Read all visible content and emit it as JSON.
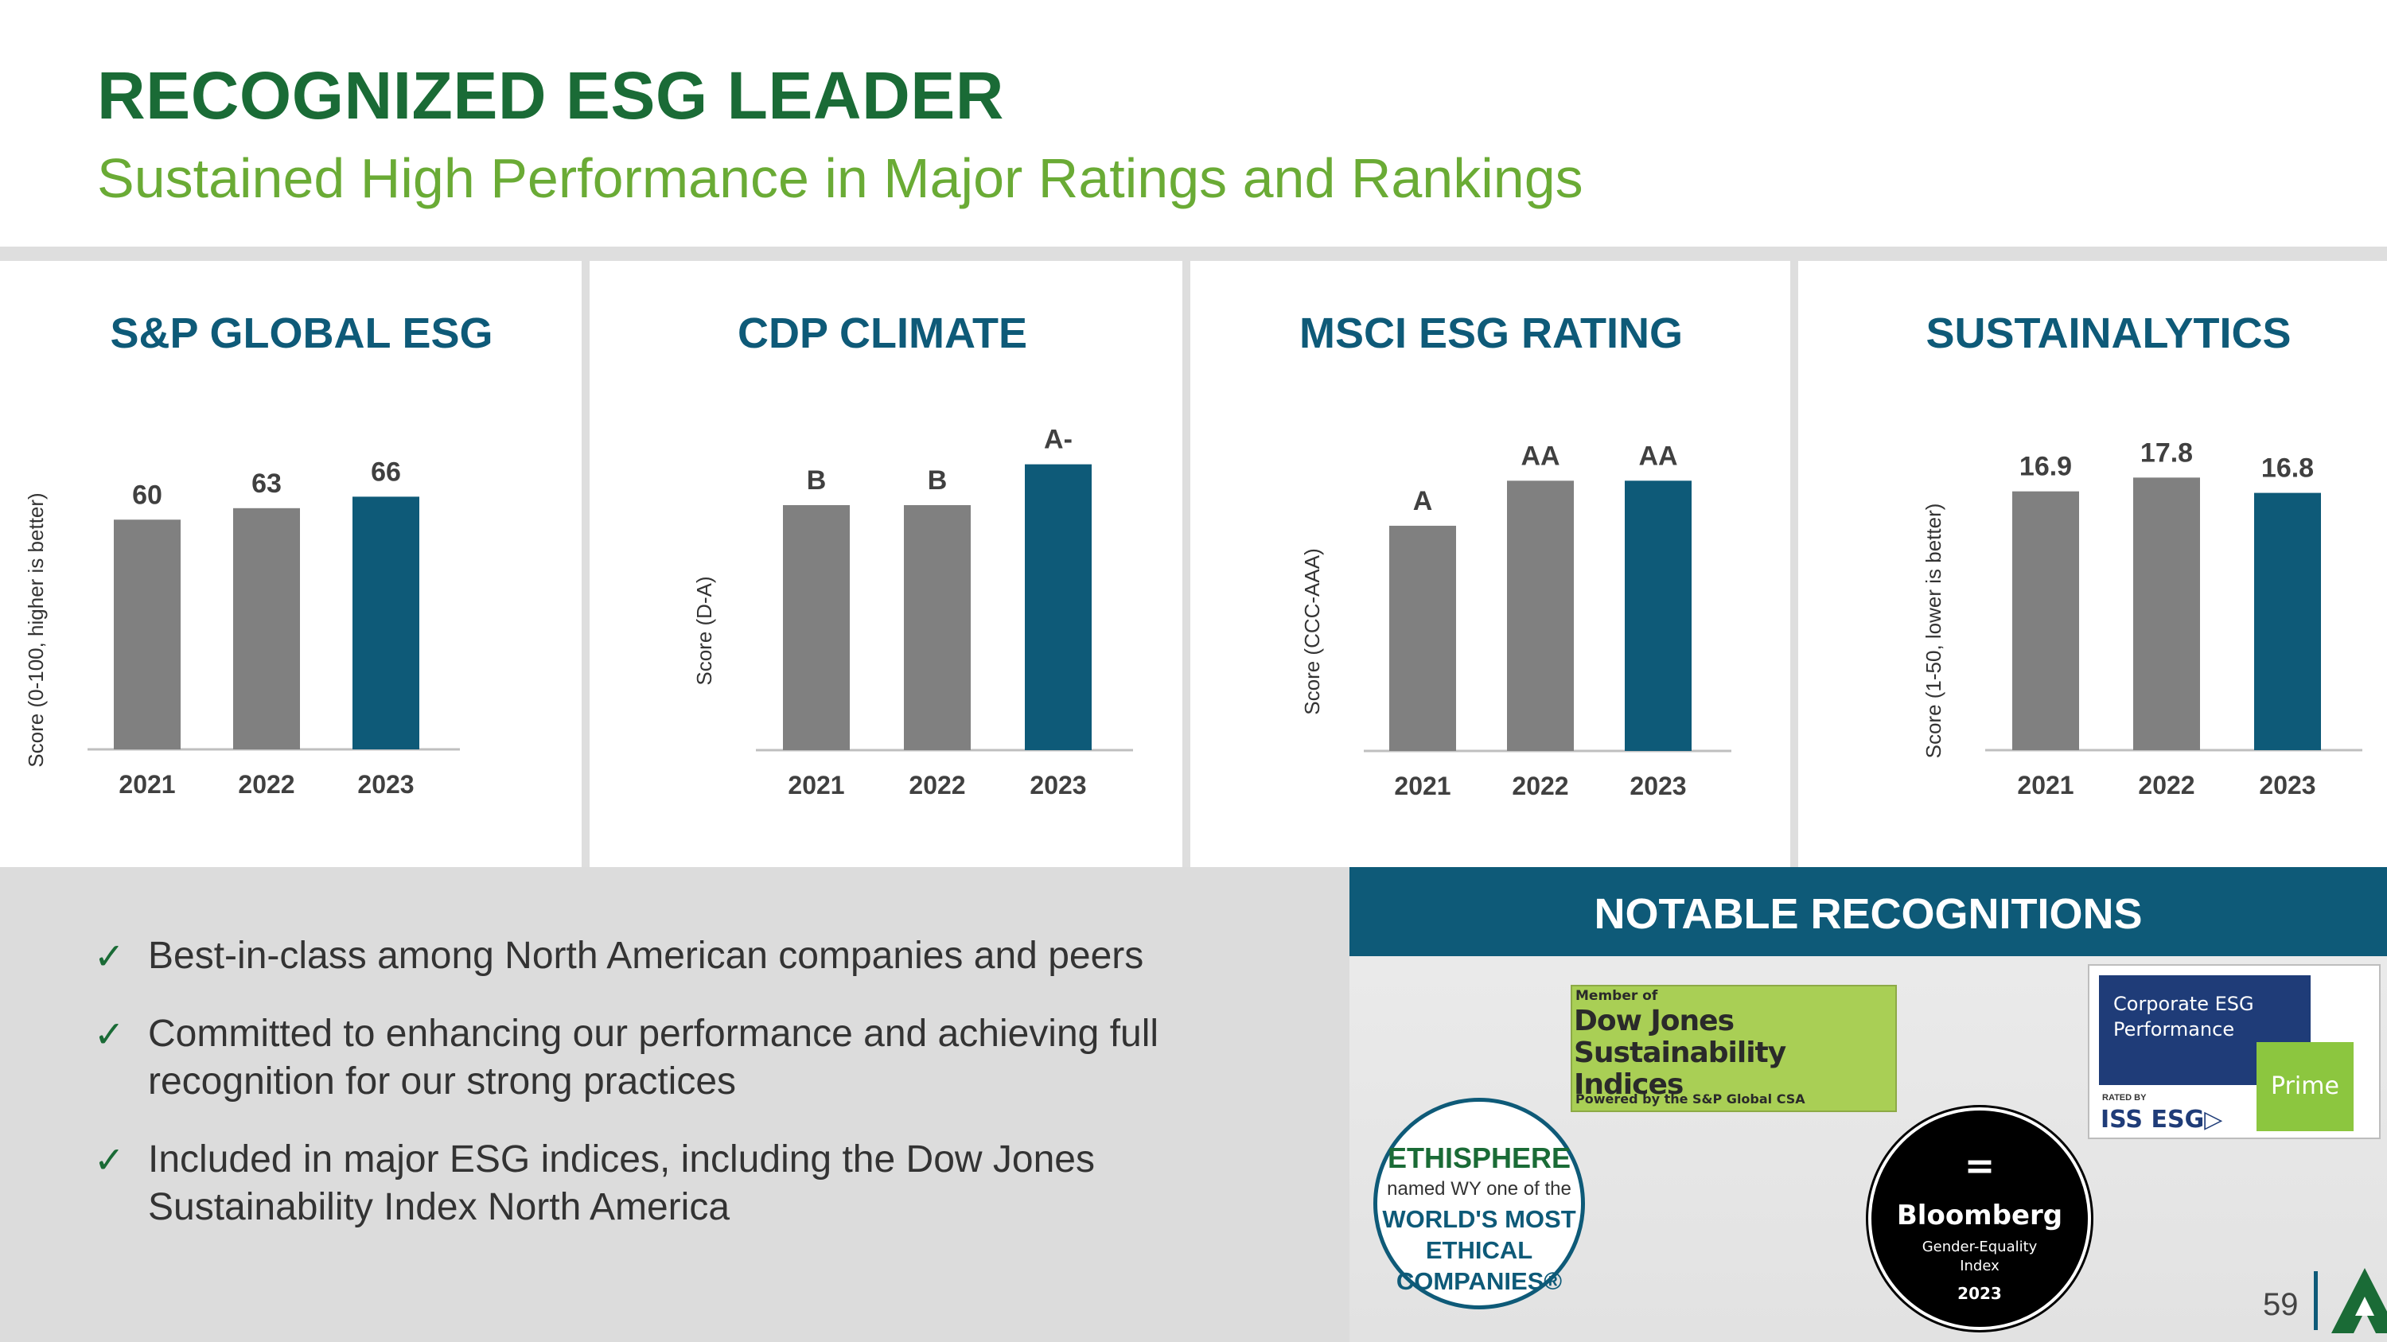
{
  "header": {
    "title": "RECOGNIZED ESG LEADER",
    "subtitle": "Sustained High Performance in Major Ratings and Rankings"
  },
  "colors": {
    "title_green": "#1a6b36",
    "subtitle_green": "#6aab35",
    "accent_blue": "#0e5a78",
    "bar_gray": "#808080",
    "bar_highlight": "#0e5a78"
  },
  "chart_data": [
    {
      "type": "bar",
      "title": "S&P GLOBAL ESG",
      "ylabel": "Score (0-100, higher is better)",
      "xlabel": "",
      "categories": [
        "2021",
        "2022",
        "2023"
      ],
      "values": [
        60,
        63,
        66
      ],
      "labels": [
        "60",
        "63",
        "66"
      ],
      "ylim": [
        0,
        80
      ],
      "highlight_index": 2
    },
    {
      "type": "bar",
      "title": "CDP CLIMATE",
      "ylabel": "Score (D-A)",
      "xlabel": "",
      "categories": [
        "2021",
        "2022",
        "2023"
      ],
      "values": [
        6,
        6,
        7
      ],
      "labels": [
        "B",
        "B",
        "A-"
      ],
      "ylim": [
        0,
        7.5
      ],
      "highlight_index": 2
    },
    {
      "type": "bar",
      "title": "MSCI ESG RATING",
      "ylabel": "Score (CCC-AAA)",
      "xlabel": "",
      "categories": [
        "2021",
        "2022",
        "2023"
      ],
      "values": [
        5,
        6,
        6
      ],
      "labels": [
        "A",
        "AA",
        "AA"
      ],
      "ylim": [
        0,
        6.8
      ],
      "highlight_index": 2
    },
    {
      "type": "bar",
      "title": "SUSTAINALYTICS",
      "ylabel": "Score (1-50, lower is better)",
      "xlabel": "",
      "categories": [
        "2021",
        "2022",
        "2023"
      ],
      "values": [
        16.9,
        17.8,
        16.8
      ],
      "labels": [
        "16.9",
        "17.8",
        "16.8"
      ],
      "ylim": [
        0,
        20
      ],
      "highlight_index": 2
    }
  ],
  "bullets": [
    {
      "check": "✓",
      "text": "Best-in-class among North American companies and peers"
    },
    {
      "check": "✓",
      "text": "Committed to enhancing our performance and achieving full recognition for our strong practices"
    },
    {
      "check": "✓",
      "text": "Included in major ESG indices, including the Dow Jones Sustainability Index North America"
    }
  ],
  "recognitions": {
    "header": "NOTABLE RECOGNITIONS",
    "dow_jones": {
      "line1": "Member of",
      "line2": "Dow Jones",
      "line3": "Sustainability Indices",
      "line4": "Powered by the S&P Global CSA"
    },
    "iss": {
      "line1": "Corporate ESG",
      "line2": "Performance",
      "prime": "Prime",
      "rated": "RATED BY",
      "logo": "ISS ESG▷"
    },
    "ethisphere": {
      "name": "ETHISPHERE",
      "line2": "named WY one of the",
      "line3": "WORLD'S MOST",
      "line4": "ETHICAL",
      "line5": "COMPANIES®"
    },
    "bloomberg": {
      "symbol": "=",
      "name": "Bloomberg",
      "line2": "Gender-Equality",
      "line3": "Index",
      "year": "2023"
    }
  },
  "footer": {
    "page_number": "59"
  }
}
